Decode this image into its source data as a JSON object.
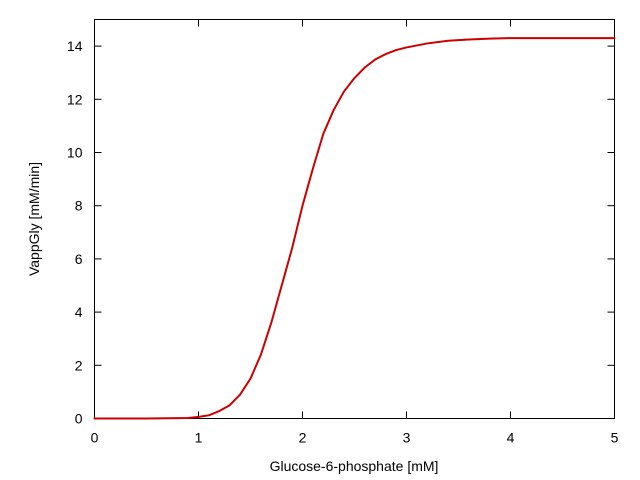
{
  "chart_data": {
    "type": "line",
    "title": "",
    "xlabel": "Glucose-6-phosphate [mM]",
    "ylabel": "VappGly [mM/min]",
    "xlim": [
      0,
      5
    ],
    "ylim": [
      0,
      15
    ],
    "xticks": [
      0,
      1,
      2,
      3,
      4,
      5
    ],
    "xtick_labels": [
      "0",
      "1",
      "2",
      "3",
      "4",
      "5"
    ],
    "yticks": [
      0,
      2,
      4,
      6,
      8,
      10,
      12,
      14
    ],
    "ytick_labels": [
      "0",
      "2",
      "4",
      "6",
      "8",
      "10",
      "12",
      "14"
    ],
    "grid": false,
    "legend": "none",
    "series": [
      {
        "color": "#cc0000",
        "x": [
          0,
          0.5,
          0.9,
          1.0,
          1.1,
          1.2,
          1.3,
          1.4,
          1.5,
          1.6,
          1.7,
          1.8,
          1.9,
          2.0,
          2.1,
          2.2,
          2.3,
          2.4,
          2.5,
          2.6,
          2.7,
          2.8,
          2.9,
          3.0,
          3.2,
          3.4,
          3.6,
          3.8,
          4.0,
          4.5,
          5.0
        ],
        "y": [
          0,
          0,
          0.02,
          0.06,
          0.12,
          0.28,
          0.5,
          0.9,
          1.5,
          2.4,
          3.6,
          5.0,
          6.4,
          8.0,
          9.4,
          10.7,
          11.6,
          12.3,
          12.8,
          13.2,
          13.5,
          13.7,
          13.85,
          13.95,
          14.1,
          14.2,
          14.25,
          14.28,
          14.3,
          14.3,
          14.3
        ]
      }
    ]
  }
}
